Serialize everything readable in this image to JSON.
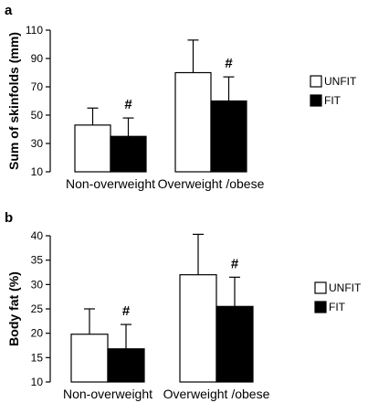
{
  "chart_data": [
    {
      "type": "bar",
      "panel_label": "a",
      "ylabel": "Sum of skinfolds (mm)",
      "ylim": [
        10,
        110
      ],
      "yticks": [
        "10",
        "30",
        "50",
        "70",
        "90",
        "110"
      ],
      "categories": [
        "Non-overweight",
        "Overweight /obese"
      ],
      "series": [
        {
          "name": "UNFIT",
          "fill": "#ffffff",
          "values": [
            43,
            80
          ],
          "errors": [
            12,
            23
          ]
        },
        {
          "name": "FIT",
          "fill": "#000000",
          "values": [
            35,
            60
          ],
          "errors": [
            13,
            17
          ]
        }
      ],
      "annotations": [
        "#",
        "#"
      ],
      "legend": {
        "position": "right",
        "entries": [
          "UNFIT",
          "FIT"
        ]
      },
      "grid": false
    },
    {
      "type": "bar",
      "panel_label": "b",
      "ylabel": "Body fat (%)",
      "ylim": [
        10,
        40
      ],
      "yticks": [
        "10",
        "15",
        "20",
        "25",
        "30",
        "35",
        "40"
      ],
      "categories": [
        "Non-overweight",
        "Overweight /obese"
      ],
      "series": [
        {
          "name": "UNFIT",
          "fill": "#ffffff",
          "values": [
            19.8,
            32
          ],
          "errors": [
            5.2,
            8.3
          ]
        },
        {
          "name": "FIT",
          "fill": "#000000",
          "values": [
            16.8,
            25.5
          ],
          "errors": [
            5,
            6
          ]
        }
      ],
      "annotations": [
        "#",
        "#"
      ],
      "legend": {
        "position": "right",
        "entries": [
          "UNFIT",
          "FIT"
        ]
      },
      "grid": false
    }
  ]
}
